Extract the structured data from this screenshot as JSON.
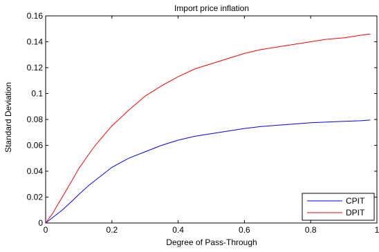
{
  "chart_data": {
    "type": "line",
    "title": "Import price inflation",
    "xlabel": "Degree of Pass-Through",
    "ylabel": "Standard Deviation",
    "xlim": [
      0,
      1
    ],
    "ylim": [
      0,
      0.16
    ],
    "xticks": [
      0,
      0.2,
      0.4,
      0.6,
      0.8,
      1
    ],
    "xtick_labels": [
      "0",
      "0.2",
      "0.4",
      "0.6",
      "0.8",
      "1"
    ],
    "yticks": [
      0,
      0.02,
      0.04,
      0.06,
      0.08,
      0.1,
      0.12,
      0.14,
      0.16
    ],
    "ytick_labels": [
      "0",
      "0.02",
      "0.04",
      "0.06",
      "0.08",
      "0.1",
      "0.12",
      "0.14",
      "0.16"
    ],
    "grid": false,
    "legend_position": "bottom-right",
    "series": [
      {
        "name": "CPIT",
        "color": "#0000ff",
        "x": [
          0,
          0.02,
          0.05,
          0.08,
          0.1,
          0.13,
          0.15,
          0.18,
          0.2,
          0.25,
          0.3,
          0.35,
          0.4,
          0.45,
          0.5,
          0.55,
          0.6,
          0.65,
          0.7,
          0.75,
          0.8,
          0.85,
          0.9,
          0.95,
          0.98
        ],
        "y": [
          0,
          0.004,
          0.01,
          0.017,
          0.022,
          0.029,
          0.033,
          0.039,
          0.043,
          0.05,
          0.055,
          0.06,
          0.064,
          0.067,
          0.069,
          0.071,
          0.073,
          0.0745,
          0.0755,
          0.0765,
          0.0775,
          0.078,
          0.0785,
          0.079,
          0.0795
        ]
      },
      {
        "name": "DPIT",
        "color": "#ff0000",
        "x": [
          0,
          0.02,
          0.05,
          0.08,
          0.1,
          0.13,
          0.15,
          0.18,
          0.2,
          0.25,
          0.3,
          0.35,
          0.4,
          0.45,
          0.5,
          0.55,
          0.6,
          0.65,
          0.7,
          0.75,
          0.8,
          0.85,
          0.9,
          0.95,
          0.98
        ],
        "y": [
          0,
          0.007,
          0.02,
          0.033,
          0.042,
          0.053,
          0.06,
          0.069,
          0.075,
          0.087,
          0.098,
          0.106,
          0.113,
          0.119,
          0.123,
          0.127,
          0.131,
          0.134,
          0.136,
          0.138,
          0.14,
          0.142,
          0.143,
          0.145,
          0.146
        ]
      }
    ]
  }
}
